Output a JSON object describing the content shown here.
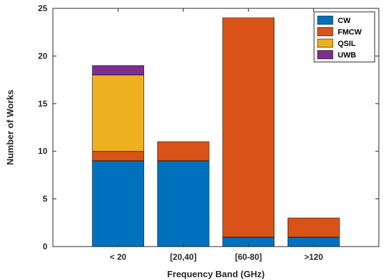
{
  "chart_data": {
    "type": "bar",
    "stacked": true,
    "categories": [
      "< 20",
      "[20,40]",
      "[60-80]",
      ">120"
    ],
    "series": [
      {
        "name": "CW",
        "color": "#0072BD",
        "values": [
          9,
          9,
          1,
          1
        ]
      },
      {
        "name": "FMCW",
        "color": "#D95319",
        "values": [
          1,
          2,
          23,
          2
        ]
      },
      {
        "name": "QSIL",
        "color": "#EDB120",
        "values": [
          8,
          0,
          0,
          0
        ]
      },
      {
        "name": "UWB",
        "color": "#7E2F8E",
        "values": [
          1,
          0,
          0,
          0
        ]
      }
    ],
    "xlabel": "Frequency Band (GHz)",
    "ylabel": "Number of Works",
    "ylim": [
      0,
      25
    ],
    "yticks": [
      0,
      5,
      10,
      15,
      20,
      25
    ],
    "grid": false,
    "legend_position": "top-right"
  }
}
